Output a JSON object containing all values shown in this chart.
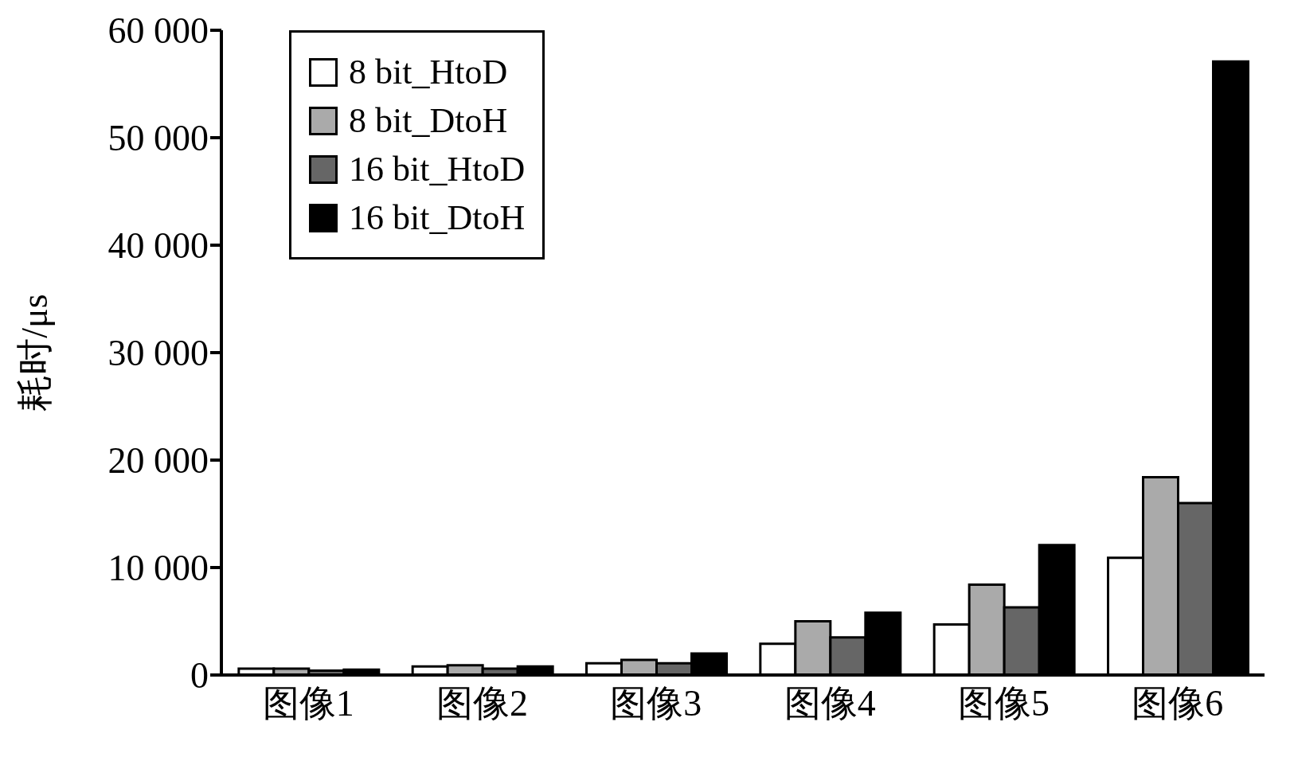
{
  "chart_data": {
    "type": "bar",
    "ylabel": "耗时/μs",
    "categories": [
      "图像1",
      "图像2",
      "图像3",
      "图像4",
      "图像5",
      "图像6"
    ],
    "series": [
      {
        "name": "8 bit_HtoD",
        "color": "#ffffff",
        "values": [
          600,
          800,
          1100,
          2900,
          4700,
          10900
        ]
      },
      {
        "name": "8 bit_DtoH",
        "color": "#aaaaaa",
        "values": [
          600,
          900,
          1400,
          5000,
          8400,
          18400
        ]
      },
      {
        "name": "16 bit_HtoD",
        "color": "#666666",
        "values": [
          400,
          600,
          1100,
          3500,
          6300,
          16000
        ]
      },
      {
        "name": "16 bit_DtoH",
        "color": "#000000",
        "values": [
          500,
          800,
          2000,
          5800,
          12100,
          57100
        ]
      }
    ],
    "ylim": [
      0,
      60000
    ],
    "yticks": [
      {
        "value": 0,
        "label": "0"
      },
      {
        "value": 10000,
        "label": "10 000"
      },
      {
        "value": 20000,
        "label": "20 000"
      },
      {
        "value": 30000,
        "label": "30 000"
      },
      {
        "value": 40000,
        "label": "40 000"
      },
      {
        "value": 50000,
        "label": "50 000"
      },
      {
        "value": 60000,
        "label": "60 000"
      }
    ],
    "grid": false,
    "legend": "top left"
  }
}
